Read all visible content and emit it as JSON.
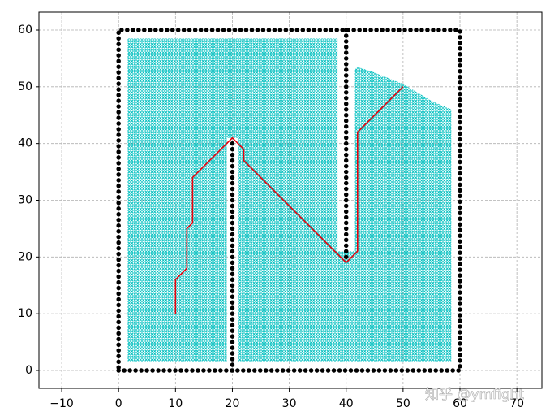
{
  "chart_data": {
    "type": "line",
    "xlim": [
      -14,
      74.4
    ],
    "ylim": [
      -3.15,
      63.15
    ],
    "xticks": [
      {
        "value": -10,
        "label": "−10"
      },
      0,
      10,
      20,
      30,
      40,
      50,
      60,
      70
    ],
    "yticks": [
      0,
      10,
      20,
      30,
      40,
      50,
      60
    ],
    "grid": true,
    "series": [
      {
        "mark": "explored",
        "color": "#00bfbf",
        "x": [
          1.5,
          19,
          19,
          21,
          21,
          58.5,
          58.5,
          55,
          50,
          45,
          42,
          41.5,
          41.5,
          38.5,
          38.5,
          1.5
        ],
        "y": [
          1.5,
          1.5,
          41,
          41,
          1.5,
          1.5,
          46,
          47.5,
          50.5,
          52.5,
          53.5,
          53,
          21,
          21,
          58.5,
          58.5
        ]
      },
      {
        "mark": "obstacle",
        "color": "#000000",
        "x": [
          0,
          60,
          60,
          0,
          0,
          null,
          20,
          20,
          null,
          40,
          40
        ],
        "y": [
          0,
          0,
          60,
          60,
          0,
          null,
          0,
          40,
          null,
          20,
          60
        ]
      },
      {
        "mark": "path",
        "color": "#e8000b",
        "x": [
          10,
          10,
          12,
          12,
          13,
          13,
          20,
          22,
          22,
          40,
          42,
          42,
          50
        ],
        "y": [
          10,
          16,
          18,
          25,
          26,
          34,
          41,
          39,
          37,
          19,
          21,
          42,
          50
        ]
      }
    ]
  },
  "watermark": "知乎 @ymfight"
}
